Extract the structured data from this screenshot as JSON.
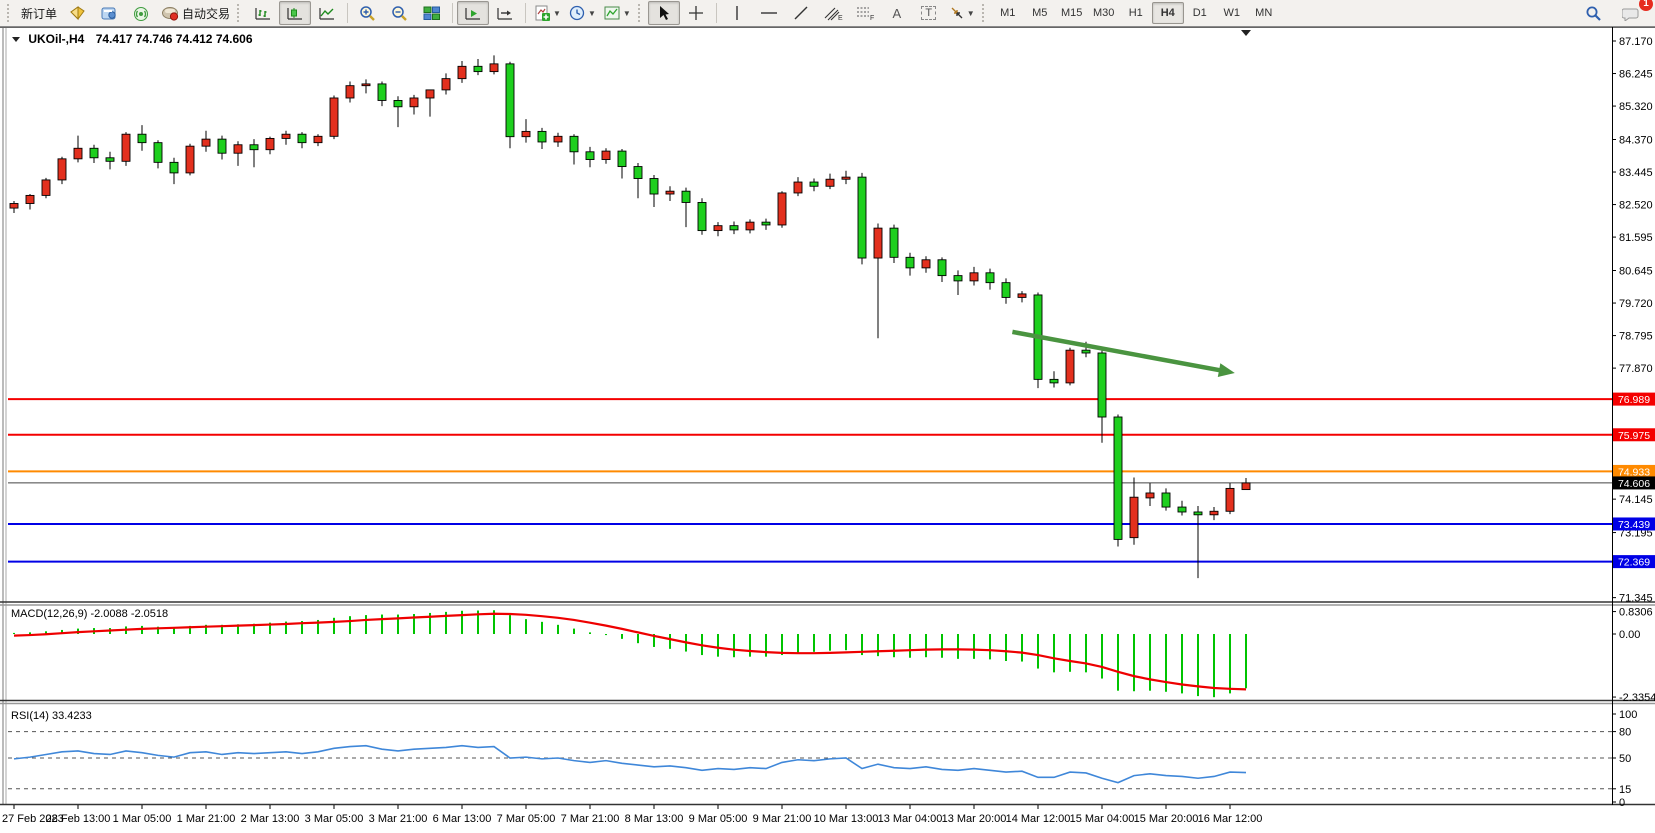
{
  "toolbar": {
    "new_order_label": "新订单",
    "autotrading_label": "自动交易",
    "text_tool_label": "A",
    "label_tool_label": "T",
    "channel_tool_letter": "E",
    "fibo_tool_letter": "F",
    "timeframes": [
      "M1",
      "M5",
      "M15",
      "M30",
      "H1",
      "H4",
      "D1",
      "W1",
      "MN"
    ],
    "selected_timeframe": "H4",
    "notification_count": "1"
  },
  "chart_header": {
    "title": "UKOil-,H4",
    "ohlc": "74.417 74.746 74.412 74.606"
  },
  "indicator_labels": {
    "macd": "MACD(12,26,9) -2.0088 -2.0518",
    "rsi": "RSI(14) 33.4233"
  },
  "price_axis": {
    "ticks": [
      "87.170",
      "86.245",
      "85.320",
      "84.370",
      "83.445",
      "82.520",
      "81.595",
      "80.645",
      "79.720",
      "78.795",
      "77.870",
      "74.145",
      "73.195",
      "71.345"
    ],
    "level_labels": [
      {
        "label": "76.989",
        "bg": "#f40000",
        "fg": "#ffffff"
      },
      {
        "label": "75.975",
        "bg": "#f40000",
        "fg": "#ffffff"
      },
      {
        "label": "74.933",
        "bg": "#ff8a00",
        "fg": "#ffffff"
      },
      {
        "label": "74.606",
        "bg": "#000000",
        "fg": "#ffffff"
      },
      {
        "label": "73.439",
        "bg": "#0000e6",
        "fg": "#ffffff"
      },
      {
        "label": "72.369",
        "bg": "#0000e6",
        "fg": "#ffffff"
      }
    ]
  },
  "time_axis": {
    "labels": [
      "27 Feb 2023",
      "28 Feb 13:00",
      "1 Mar 05:00",
      "1 Mar 21:00",
      "2 Mar 13:00",
      "3 Mar 05:00",
      "3 Mar 21:00",
      "6 Mar 13:00",
      "7 Mar 05:00",
      "7 Mar 21:00",
      "8 Mar 13:00",
      "9 Mar 05:00",
      "9 Mar 21:00",
      "10 Mar 13:00",
      "13 Mar 04:00",
      "13 Mar 20:00",
      "14 Mar 12:00",
      "15 Mar 04:00",
      "15 Mar 20:00",
      "16 Mar 12:00"
    ],
    "candles_per_label": 4
  },
  "chart_data": [
    {
      "type": "candlestick",
      "symbol": "UKOil-",
      "timeframe": "H4",
      "title": "UKOil-,H4 74.417 74.746 74.412 74.606",
      "up_color": "#e3301e",
      "down_color": "#1ecf1e",
      "color_convention": "red = bullish, green = bearish",
      "ylim": [
        71.0,
        87.6
      ],
      "current_price": 74.606,
      "ohlc": [
        [
          82.42,
          82.62,
          82.28,
          82.55
        ],
        [
          82.55,
          82.82,
          82.38,
          82.78
        ],
        [
          82.78,
          83.28,
          82.7,
          83.22
        ],
        [
          83.22,
          83.88,
          83.1,
          83.82
        ],
        [
          83.82,
          84.48,
          83.72,
          84.12
        ],
        [
          84.12,
          84.22,
          83.7,
          83.85
        ],
        [
          83.85,
          84.02,
          83.52,
          83.75
        ],
        [
          83.75,
          84.58,
          83.62,
          84.52
        ],
        [
          84.52,
          84.78,
          84.05,
          84.28
        ],
        [
          84.28,
          84.35,
          83.55,
          83.72
        ],
        [
          83.72,
          83.85,
          83.1,
          83.42
        ],
        [
          83.42,
          84.25,
          83.35,
          84.18
        ],
        [
          84.18,
          84.62,
          84.02,
          84.38
        ],
        [
          84.38,
          84.48,
          83.8,
          83.98
        ],
        [
          83.98,
          84.32,
          83.62,
          84.22
        ],
        [
          84.22,
          84.38,
          83.58,
          84.08
        ],
        [
          84.08,
          84.45,
          83.95,
          84.4
        ],
        [
          84.4,
          84.62,
          84.22,
          84.52
        ],
        [
          84.52,
          84.58,
          84.12,
          84.28
        ],
        [
          84.28,
          84.52,
          84.18,
          84.46
        ],
        [
          84.46,
          85.62,
          84.38,
          85.55
        ],
        [
          85.55,
          86.02,
          85.42,
          85.9
        ],
        [
          85.9,
          86.08,
          85.68,
          85.95
        ],
        [
          85.95,
          86.02,
          85.32,
          85.48
        ],
        [
          85.48,
          85.6,
          84.72,
          85.3
        ],
        [
          85.3,
          85.64,
          85.08,
          85.55
        ],
        [
          85.55,
          85.66,
          85.02,
          85.78
        ],
        [
          85.78,
          86.25,
          85.65,
          86.1
        ],
        [
          86.1,
          86.6,
          85.98,
          86.45
        ],
        [
          86.45,
          86.66,
          86.2,
          86.3
        ],
        [
          86.3,
          86.76,
          86.22,
          86.52
        ],
        [
          86.52,
          86.58,
          84.12,
          84.45
        ],
        [
          84.45,
          84.95,
          84.28,
          84.6
        ],
        [
          84.6,
          84.7,
          84.1,
          84.3
        ],
        [
          84.3,
          84.56,
          84.16,
          84.46
        ],
        [
          84.46,
          84.52,
          83.66,
          84.02
        ],
        [
          84.02,
          84.16,
          83.58,
          83.8
        ],
        [
          83.8,
          84.12,
          83.68,
          84.04
        ],
        [
          84.04,
          84.1,
          83.26,
          83.6
        ],
        [
          83.6,
          83.7,
          82.7,
          83.26
        ],
        [
          83.26,
          83.36,
          82.45,
          82.82
        ],
        [
          82.82,
          83.04,
          82.62,
          82.9
        ],
        [
          82.9,
          83.0,
          81.88,
          82.58
        ],
        [
          82.58,
          82.7,
          81.66,
          81.78
        ],
        [
          81.78,
          82.02,
          81.62,
          81.92
        ],
        [
          81.92,
          82.04,
          81.68,
          81.8
        ],
        [
          81.8,
          82.1,
          81.7,
          82.02
        ],
        [
          82.02,
          82.12,
          81.8,
          81.94
        ],
        [
          81.94,
          82.9,
          81.86,
          82.85
        ],
        [
          82.85,
          83.3,
          82.76,
          83.16
        ],
        [
          83.16,
          83.26,
          82.9,
          83.04
        ],
        [
          83.04,
          83.4,
          82.96,
          83.24
        ],
        [
          83.24,
          83.48,
          83.1,
          83.3
        ],
        [
          83.3,
          83.42,
          80.82,
          81.0
        ],
        [
          81.0,
          81.98,
          78.72,
          81.85
        ],
        [
          81.85,
          81.95,
          80.86,
          81.02
        ],
        [
          81.02,
          81.15,
          80.5,
          80.72
        ],
        [
          80.72,
          81.05,
          80.58,
          80.95
        ],
        [
          80.95,
          81.02,
          80.32,
          80.5
        ],
        [
          80.5,
          80.65,
          79.95,
          80.35
        ],
        [
          80.35,
          80.75,
          80.22,
          80.58
        ],
        [
          80.58,
          80.7,
          80.1,
          80.3
        ],
        [
          80.3,
          80.42,
          79.7,
          79.88
        ],
        [
          79.88,
          80.06,
          79.74,
          79.98
        ],
        [
          79.95,
          80.02,
          77.3,
          77.55
        ],
        [
          77.55,
          77.78,
          77.32,
          77.45
        ],
        [
          77.45,
          78.45,
          77.38,
          78.38
        ],
        [
          78.38,
          78.62,
          78.18,
          78.3
        ],
        [
          78.3,
          78.42,
          75.75,
          76.48
        ],
        [
          76.48,
          76.55,
          72.8,
          73.0
        ],
        [
          73.05,
          74.76,
          72.85,
          74.2
        ],
        [
          74.18,
          74.6,
          73.95,
          74.32
        ],
        [
          74.32,
          74.45,
          73.82,
          73.92
        ],
        [
          73.92,
          74.1,
          73.68,
          73.78
        ],
        [
          73.78,
          73.95,
          71.9,
          73.7
        ],
        [
          73.7,
          73.92,
          73.55,
          73.8
        ],
        [
          73.8,
          74.6,
          73.72,
          74.45
        ],
        [
          74.417,
          74.746,
          74.412,
          74.606
        ]
      ],
      "levels": [
        {
          "price": 76.989,
          "color": "#f40000",
          "width": 2
        },
        {
          "price": 75.975,
          "color": "#f40000",
          "width": 2
        },
        {
          "price": 74.933,
          "color": "#ff8a00",
          "width": 2
        },
        {
          "price": 73.439,
          "color": "#0000e6",
          "width": 2
        },
        {
          "price": 72.369,
          "color": "#0000e6",
          "width": 2
        }
      ],
      "current_price_line": {
        "price": 74.606,
        "color": "#444444",
        "width": 1
      },
      "trend_arrow": {
        "from_index": 62.4,
        "from_price": 78.9,
        "to_index": 76.3,
        "to_price": 77.73,
        "color": "#4a9440"
      }
    },
    {
      "type": "macd",
      "params": [
        12,
        26,
        9
      ],
      "current_macd": -2.0088,
      "current_signal": -2.0518,
      "axis_labels": [
        "0.8306",
        "0.00",
        "-2.3354"
      ],
      "axis_values": [
        0.8306,
        0.0,
        -2.3354
      ],
      "histogram": [
        0.04,
        0.06,
        0.1,
        0.15,
        0.2,
        0.22,
        0.22,
        0.28,
        0.3,
        0.27,
        0.24,
        0.3,
        0.34,
        0.34,
        0.36,
        0.38,
        0.42,
        0.46,
        0.48,
        0.52,
        0.6,
        0.66,
        0.7,
        0.72,
        0.72,
        0.74,
        0.78,
        0.82,
        0.86,
        0.87,
        0.88,
        0.7,
        0.55,
        0.45,
        0.34,
        0.2,
        0.06,
        -0.04,
        -0.18,
        -0.34,
        -0.48,
        -0.55,
        -0.65,
        -0.78,
        -0.84,
        -0.86,
        -0.84,
        -0.84,
        -0.78,
        -0.7,
        -0.66,
        -0.62,
        -0.6,
        -0.78,
        -0.82,
        -0.86,
        -0.88,
        -0.86,
        -0.88,
        -0.92,
        -0.92,
        -0.94,
        -1.0,
        -1.02,
        -1.28,
        -1.42,
        -1.4,
        -1.42,
        -1.65,
        -2.1,
        -2.12,
        -2.1,
        -2.14,
        -2.2,
        -2.3,
        -2.34,
        -2.2,
        -2.01
      ],
      "signal": [
        -0.06,
        -0.04,
        -0.01,
        0.03,
        0.07,
        0.1,
        0.13,
        0.16,
        0.19,
        0.21,
        0.23,
        0.25,
        0.27,
        0.29,
        0.31,
        0.33,
        0.35,
        0.37,
        0.4,
        0.42,
        0.45,
        0.48,
        0.52,
        0.55,
        0.58,
        0.61,
        0.64,
        0.67,
        0.7,
        0.73,
        0.75,
        0.74,
        0.71,
        0.66,
        0.6,
        0.52,
        0.42,
        0.31,
        0.19,
        0.06,
        -0.07,
        -0.19,
        -0.31,
        -0.42,
        -0.51,
        -0.58,
        -0.63,
        -0.67,
        -0.7,
        -0.71,
        -0.71,
        -0.7,
        -0.68,
        -0.66,
        -0.64,
        -0.62,
        -0.6,
        -0.58,
        -0.57,
        -0.57,
        -0.58,
        -0.6,
        -0.64,
        -0.69,
        -0.78,
        -0.9,
        -1.0,
        -1.09,
        -1.22,
        -1.4,
        -1.56,
        -1.68,
        -1.78,
        -1.87,
        -1.94,
        -2.0,
        -2.03,
        -2.05
      ],
      "histogram_color": "#00c400",
      "signal_color": "#ee0000"
    },
    {
      "type": "rsi",
      "period": 14,
      "current": 33.4233,
      "levels": [
        "100",
        "80",
        "50",
        "15",
        "0"
      ],
      "level_values": [
        100,
        80,
        50,
        15,
        0
      ],
      "dashed_levels": [
        80,
        50,
        15
      ],
      "line_color": "#3f87d9",
      "values": [
        49,
        51,
        54,
        57,
        58,
        55,
        54,
        58,
        56,
        53,
        51,
        56,
        57,
        54,
        56,
        55,
        56,
        57,
        55,
        57,
        61,
        63,
        64,
        60,
        58,
        60,
        61,
        62,
        64,
        62,
        63,
        50,
        51,
        49,
        50,
        47,
        45,
        47,
        44,
        42,
        40,
        41,
        39,
        36,
        38,
        37,
        39,
        38,
        45,
        48,
        47,
        49,
        50,
        38,
        43,
        39,
        38,
        40,
        37,
        36,
        38,
        36,
        34,
        35,
        28,
        28,
        34,
        33,
        27,
        22,
        30,
        32,
        30,
        29,
        27,
        29,
        34,
        33.42
      ]
    }
  ]
}
